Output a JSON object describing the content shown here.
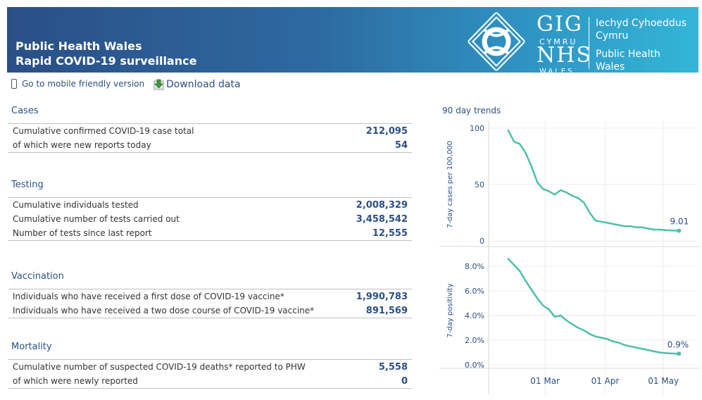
{
  "header": {
    "title_line1": "Public Health Wales",
    "title_line2": "Rapid COVID-19 surveillance",
    "logo": {
      "gig": "GIG",
      "cymru": "CYMRU",
      "nhs": "NHS",
      "wales": "WALES",
      "org_cy_line1": "Iechyd Cyhoeddus",
      "org_cy_line2": "Cymru",
      "org_en_line1": "Public Health",
      "org_en_line2": "Wales"
    }
  },
  "links": {
    "mobile": "Go to mobile friendly version",
    "download": "Download data"
  },
  "sections": {
    "cases": {
      "title": "Cases",
      "rows": [
        {
          "label": "Cumulative confirmed COVID-19 case total",
          "value": "212,095"
        },
        {
          "label": "of which were new reports today",
          "value": "54"
        }
      ]
    },
    "testing": {
      "title": "Testing",
      "rows": [
        {
          "label": "Cumulative individuals tested",
          "value": "2,008,329"
        },
        {
          "label": "Cumulative number of tests carried out",
          "value": "3,458,542"
        },
        {
          "label": "Number of tests since last report",
          "value": "12,555"
        }
      ]
    },
    "vaccination": {
      "title": "Vaccination",
      "rows": [
        {
          "label": "Individuals who have received a first dose of COVID-19 vaccine*",
          "value": "1,990,783"
        },
        {
          "label": "Individuals who have received a two dose course of COVID-19 vaccine*",
          "value": "891,569"
        }
      ]
    },
    "mortality": {
      "title": "Mortality",
      "rows": [
        {
          "label": "Cumulative number of suspected COVID-19 deaths* reported to PHW",
          "value": "5,558"
        },
        {
          "label": "of which were newly reported",
          "value": "0"
        }
      ]
    }
  },
  "trends": {
    "title": "90 day trends"
  },
  "colors": {
    "accent": "#2a4f86",
    "line": "#4dbfaa"
  },
  "chart_data": [
    {
      "type": "line",
      "title": "",
      "ylabel": "7-day cases per 100,000",
      "ylim": [
        0,
        100
      ],
      "yticks": [
        "0",
        "50",
        "100"
      ],
      "xticks": [
        "01 Mar",
        "01 Apr",
        "01 May"
      ],
      "end_label": "9.01",
      "x": [
        "2021-02-10",
        "2021-02-13",
        "2021-02-16",
        "2021-02-19",
        "2021-02-22",
        "2021-02-25",
        "2021-02-28",
        "2021-03-03",
        "2021-03-06",
        "2021-03-09",
        "2021-03-12",
        "2021-03-15",
        "2021-03-18",
        "2021-03-21",
        "2021-03-24",
        "2021-03-27",
        "2021-03-30",
        "2021-04-02",
        "2021-04-05",
        "2021-04-08",
        "2021-04-11",
        "2021-04-14",
        "2021-04-17",
        "2021-04-20",
        "2021-04-23",
        "2021-04-26",
        "2021-04-29",
        "2021-05-02",
        "2021-05-05",
        "2021-05-09"
      ],
      "values": [
        98,
        88,
        86,
        78,
        66,
        52,
        46,
        44,
        41,
        45,
        43,
        40,
        38,
        34,
        25,
        18,
        17,
        16,
        15,
        14,
        13,
        13,
        12,
        12,
        11,
        10,
        10,
        9.5,
        9.2,
        9.01
      ]
    },
    {
      "type": "line",
      "title": "",
      "ylabel": "7-day positivity",
      "ylim": [
        0,
        8.8
      ],
      "yticks": [
        "0.0%",
        "2.0%",
        "4.0%",
        "6.0%",
        "8.0%"
      ],
      "xticks": [
        "01 Mar",
        "01 Apr",
        "01 May"
      ],
      "end_label": "0.9%",
      "x": [
        "2021-02-10",
        "2021-02-13",
        "2021-02-16",
        "2021-02-19",
        "2021-02-22",
        "2021-02-25",
        "2021-02-28",
        "2021-03-03",
        "2021-03-06",
        "2021-03-09",
        "2021-03-12",
        "2021-03-15",
        "2021-03-18",
        "2021-03-21",
        "2021-03-24",
        "2021-03-27",
        "2021-03-30",
        "2021-04-02",
        "2021-04-05",
        "2021-04-08",
        "2021-04-11",
        "2021-04-14",
        "2021-04-17",
        "2021-04-20",
        "2021-04-23",
        "2021-04-26",
        "2021-04-29",
        "2021-05-02",
        "2021-05-05",
        "2021-05-09"
      ],
      "values": [
        8.6,
        8.1,
        7.6,
        6.8,
        6.1,
        5.4,
        4.8,
        4.5,
        3.9,
        4.0,
        3.6,
        3.3,
        3.0,
        2.8,
        2.5,
        2.3,
        2.2,
        2.1,
        1.9,
        1.8,
        1.6,
        1.5,
        1.4,
        1.3,
        1.2,
        1.1,
        1.0,
        0.95,
        0.92,
        0.9
      ]
    }
  ]
}
